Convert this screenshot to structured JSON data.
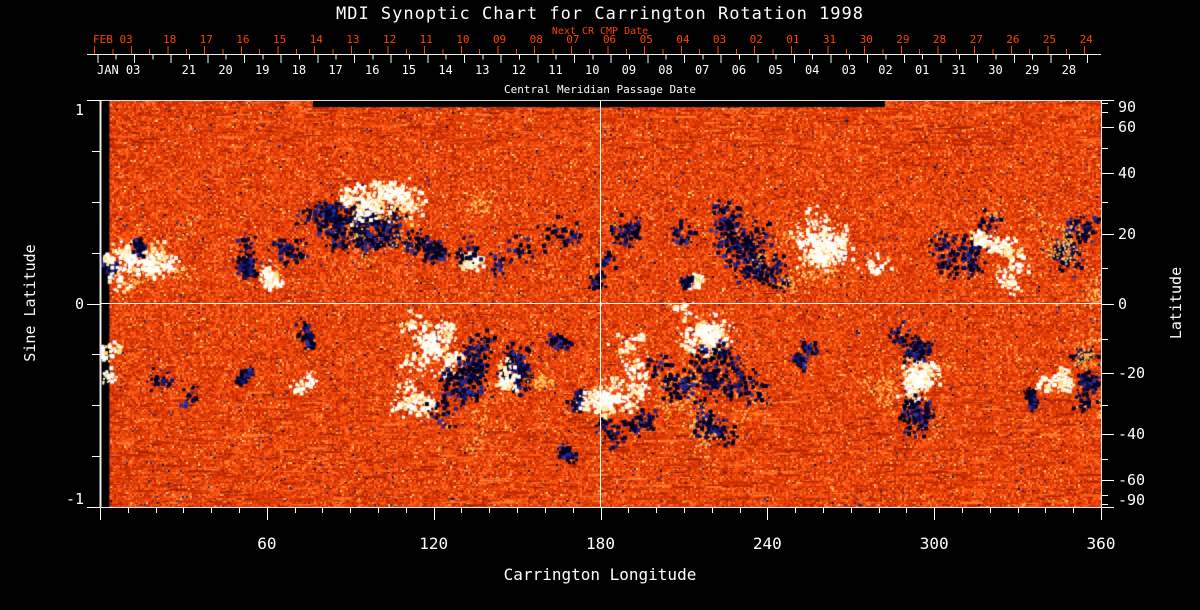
{
  "title": "MDI Synoptic Chart for Carrington Rotation 1998",
  "colors": {
    "background": "#000000",
    "accent_red": "#ff4200",
    "axis_white": "#ffffff",
    "border": "#e9e9e9",
    "crosshair": "#ffffff"
  },
  "chart_data": {
    "type": "heatmap",
    "title": "MDI Synoptic Chart for Carrington Rotation 1998",
    "top_axis": {
      "label": "Next CR CMP Date",
      "month_label": "FEB 03",
      "day_labels": [
        "18",
        "17",
        "16",
        "15",
        "14",
        "13",
        "12",
        "11",
        "10",
        "09",
        "08",
        "07",
        "06",
        "05",
        "04",
        "03",
        "02",
        "01",
        "31",
        "30",
        "29",
        "28",
        "27",
        "26",
        "25",
        "24"
      ]
    },
    "cmp_axis": {
      "title": "Central Meridian Passage Date",
      "month_label": "JAN 03",
      "day_labels": [
        "21",
        "20",
        "19",
        "18",
        "17",
        "16",
        "15",
        "14",
        "13",
        "12",
        "11",
        "10",
        "09",
        "08",
        "07",
        "06",
        "05",
        "04",
        "03",
        "02",
        "01",
        "31",
        "30",
        "29",
        "28"
      ]
    },
    "bottom_axis": {
      "title": "Carrington Longitude",
      "major_tick_values": [
        60,
        120,
        180,
        240,
        300,
        360
      ],
      "minor_step_deg": 10,
      "range": [
        0,
        360
      ]
    },
    "left_axis": {
      "title": "Sine Latitude",
      "tick_label_values": [
        1,
        0,
        -1
      ],
      "minor_step": 0.25,
      "range": [
        -1,
        1
      ]
    },
    "right_axis": {
      "title": "Latitude",
      "tick_label_values": [
        90,
        60,
        40,
        20,
        0,
        -20,
        -40,
        -60,
        -90
      ],
      "minor_step_deg": 10,
      "range": [
        -90,
        90
      ]
    },
    "crosshair": {
      "longitude_deg": 180,
      "sine_latitude": 0
    },
    "colormap": {
      "quiet_sun": "orange-red mottle",
      "negative_polarity": "dark blue / black",
      "positive_polarity": "white / pale yellow"
    },
    "magnetogram": {
      "base_palette": [
        "#b52400",
        "#c92c00",
        "#dc3804",
        "#ea4307",
        "#f75010",
        "#ff6018",
        "#ff7126",
        "#ff8638",
        "#ffa352",
        "#ffcf70",
        "#2b2b7a",
        "#11114a"
      ],
      "base_weights": [
        0.06,
        0.13,
        0.2,
        0.22,
        0.17,
        0.1,
        0.055,
        0.03,
        0.013,
        0.006,
        0.004,
        0.002
      ],
      "neg_palette": [
        "#000020",
        "#06062e",
        "#0b0b44",
        "#16166b",
        "#23238a",
        "#2f2f9a"
      ],
      "pos_palette": [
        "#ffffff",
        "#fffbe8",
        "#fff3c4",
        "#ffe9a0",
        "#ffd878"
      ],
      "plage_palette": [
        "#ffc75e",
        "#ffb347",
        "#ff9d36",
        "#ffd87e"
      ],
      "streak_palette": [
        "#c62a00",
        "#e13a04",
        "#ff5d12",
        "#ff7a2a",
        "#d13004",
        "#b02400"
      ],
      "gaps": [
        {
          "lon0": 0,
          "lon1": 3.4,
          "slat0": -1,
          "slat1": 1
        },
        {
          "lon0": 76.6,
          "lon1": 282.3,
          "slat0": 0.965,
          "slat1": 1
        }
      ],
      "speckle": {
        "navy_n": 2000,
        "yellow_n": 2600,
        "dash_n": 900
      },
      "polar_streaks": {
        "top_h": 48,
        "top_n": 540,
        "bottom_start": 290,
        "bottom_n": 950
      },
      "regions": [
        [
          1.8,
          0.224,
          8,
          22,
          0,
          "neg",
          90
        ],
        [
          2.5,
          0.224,
          4,
          6,
          0,
          "pos",
          70
        ],
        [
          16.2,
          0.21,
          38,
          25,
          0,
          "pos",
          260
        ],
        [
          20,
          0.2,
          45,
          30,
          0,
          "plage",
          140
        ],
        [
          16.2,
          0.284,
          18,
          8,
          0,
          "neg",
          70
        ],
        [
          50.3,
          0.185,
          16,
          12,
          0,
          "neg",
          140
        ],
        [
          61.1,
          0.136,
          16,
          12,
          0,
          "pos",
          120
        ],
        [
          59.3,
          0.309,
          110,
          18,
          0,
          "neg",
          110
        ],
        [
          82.7,
          0.432,
          55,
          28,
          0,
          "neg",
          380
        ],
        [
          100.7,
          0.358,
          30,
          25,
          0,
          "neg",
          200
        ],
        [
          96.4,
          0.333,
          10,
          40,
          20,
          "neg",
          150
        ],
        [
          104.3,
          0.531,
          45,
          28,
          0,
          "pos",
          300
        ],
        [
          94.2,
          0.506,
          16,
          14,
          0,
          "pos",
          150
        ],
        [
          107.9,
          0.358,
          80,
          45,
          0,
          "plage",
          250
        ],
        [
          132.3,
          0.21,
          18,
          12,
          0,
          "pos",
          90
        ],
        [
          120.5,
          0.259,
          15,
          15,
          0,
          "neg",
          90
        ],
        [
          145,
          0.25,
          40,
          20,
          0,
          "neg",
          70
        ],
        [
          161.8,
          0.309,
          55,
          25,
          0,
          "neg",
          90
        ],
        [
          176,
          0.17,
          25,
          12,
          0,
          "neg",
          50
        ],
        [
          197.8,
          0.309,
          50,
          35,
          0,
          "neg",
          120
        ],
        [
          228,
          0.42,
          35,
          20,
          0,
          "neg",
          90
        ],
        [
          235.6,
          0.259,
          42,
          38,
          0,
          "neg",
          420
        ],
        [
          258.9,
          0.259,
          45,
          35,
          0,
          "pos",
          380
        ],
        [
          251.7,
          0.21,
          70,
          45,
          0,
          "plage",
          210
        ],
        [
          213.3,
          0.111,
          10,
          9,
          0,
          "pos",
          60
        ],
        [
          210.4,
          0.121,
          6,
          6,
          0,
          "neg",
          40
        ],
        [
          309.3,
          0.259,
          30,
          40,
          0,
          "neg",
          260
        ],
        [
          318.3,
          0.284,
          18,
          12,
          0,
          "pos",
          140
        ],
        [
          330.9,
          0.16,
          22,
          18,
          0,
          "pos",
          90
        ],
        [
          348.9,
          0.309,
          38,
          28,
          0,
          "neg",
          280
        ],
        [
          341.7,
          0.358,
          60,
          40,
          0,
          "plage",
          160
        ],
        [
          351,
          0.3,
          20,
          25,
          0,
          "plage",
          100
        ],
        [
          357.8,
          0.136,
          15,
          35,
          0,
          "plage",
          90
        ],
        [
          2.9,
          -0.259,
          10,
          35,
          0,
          "pos",
          90
        ],
        [
          27,
          -0.432,
          50,
          15,
          0,
          "neg",
          70
        ],
        [
          50.3,
          -0.358,
          15,
          8,
          0,
          "neg",
          40
        ],
        [
          70.1,
          -0.407,
          14,
          12,
          0,
          "pos",
          80
        ],
        [
          75.5,
          -0.16,
          10,
          10,
          0,
          "neg",
          60
        ],
        [
          118.7,
          -0.21,
          25,
          35,
          0,
          "pos",
          280
        ],
        [
          111.5,
          -0.481,
          28,
          25,
          0,
          "pos",
          180
        ],
        [
          129.5,
          -0.309,
          22,
          50,
          15,
          "neg",
          420
        ],
        [
          150,
          -0.314,
          16,
          30,
          0,
          "neg",
          200
        ],
        [
          145.7,
          -0.319,
          12,
          18,
          0,
          "pos",
          100
        ],
        [
          140.3,
          -0.58,
          45,
          15,
          -25,
          "plage",
          150
        ],
        [
          160,
          -0.4,
          14,
          10,
          0,
          "plage",
          90
        ],
        [
          165.4,
          -0.16,
          12,
          10,
          0,
          "neg",
          60
        ],
        [
          172.6,
          -0.432,
          10,
          20,
          0,
          "neg",
          70
        ],
        [
          183,
          -0.46,
          28,
          14,
          0,
          "pos",
          220
        ],
        [
          188.8,
          -0.309,
          25,
          25,
          0,
          "pos",
          140
        ],
        [
          208.6,
          -0.481,
          70,
          50,
          0,
          "plage",
          250
        ],
        [
          215,
          -0.58,
          40,
          20,
          0,
          "plage",
          140
        ],
        [
          217.6,
          -0.136,
          22,
          18,
          0,
          "pos",
          320
        ],
        [
          219.4,
          -0.383,
          45,
          55,
          10,
          "neg",
          620
        ],
        [
          191.3,
          -0.592,
          35,
          14,
          -30,
          "neg",
          170
        ],
        [
          174.4,
          -0.695,
          22,
          8,
          -15,
          "neg",
          70
        ],
        [
          251.7,
          -0.235,
          12,
          10,
          0,
          "neg",
          70
        ],
        [
          293.1,
          -0.358,
          18,
          18,
          0,
          "pos",
          260
        ],
        [
          291.3,
          -0.185,
          22,
          16,
          0,
          "neg",
          160
        ],
        [
          294.9,
          -0.531,
          22,
          18,
          0,
          "neg",
          180
        ],
        [
          287.7,
          -0.407,
          60,
          45,
          0,
          "plage",
          220
        ],
        [
          336.3,
          -0.457,
          10,
          8,
          0,
          "neg",
          60
        ],
        [
          344.5,
          -0.373,
          14,
          20,
          0,
          "pos",
          140
        ],
        [
          356,
          -0.358,
          14,
          28,
          0,
          "neg",
          180
        ],
        [
          356,
          -0.235,
          12,
          35,
          0,
          "plage",
          120
        ],
        [
          359.6,
          -0.481,
          8,
          25,
          0,
          "plage",
          70
        ]
      ]
    }
  }
}
